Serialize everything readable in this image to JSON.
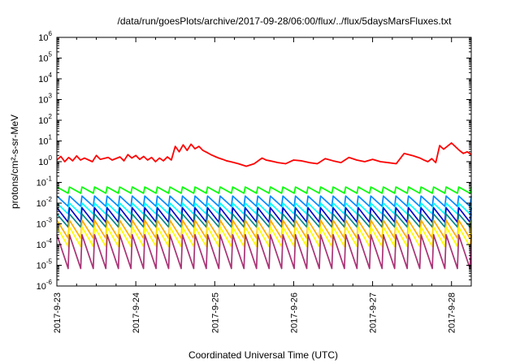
{
  "chart_data": {
    "type": "line",
    "title": "/data/run/goesPlots/archive/2017-09-28/06:00/flux/../flux/5daysMarsFluxes.txt",
    "xlabel": "Coordinated Universal Time (UTC)",
    "ylabel": "protons/cm²-s-sr-MeV",
    "y_scale": "log",
    "ylim": [
      1e-06,
      1000000.0
    ],
    "xlim": [
      "2017-09-23 00:00",
      "2017-09-28 06:00"
    ],
    "x_ticks": [
      "2017-9-23",
      "2017-9-24",
      "2017-9-25",
      "2017-9-26",
      "2017-9-27",
      "2017-9-28"
    ],
    "y_ticks": [
      {
        "base": "10",
        "exp": "-6"
      },
      {
        "base": "10",
        "exp": "-5"
      },
      {
        "base": "10",
        "exp": "-4"
      },
      {
        "base": "10",
        "exp": "-3"
      },
      {
        "base": "10",
        "exp": "-2"
      },
      {
        "base": "10",
        "exp": "-1"
      },
      {
        "base": "10",
        "exp": "0"
      },
      {
        "base": "10",
        "exp": "1"
      },
      {
        "base": "10",
        "exp": "2"
      },
      {
        "base": "10",
        "exp": "3"
      },
      {
        "base": "10",
        "exp": "4"
      },
      {
        "base": "10",
        "exp": "5"
      },
      {
        "base": "10",
        "exp": "6"
      }
    ],
    "grid": false,
    "legend": "none",
    "series": [
      {
        "color": "#ff0000",
        "sawtooth": false,
        "x": [
          0.0,
          0.05,
          0.1,
          0.15,
          0.2,
          0.25,
          0.3,
          0.35,
          0.45,
          0.5,
          0.55,
          0.65,
          0.7,
          0.8,
          0.85,
          0.9,
          0.95,
          1.0,
          1.05,
          1.1,
          1.15,
          1.2,
          1.25,
          1.3,
          1.35,
          1.4,
          1.45,
          1.5,
          1.55,
          1.6,
          1.65,
          1.7,
          1.75,
          1.8,
          1.85,
          1.9,
          1.95,
          2.0,
          2.05,
          2.1,
          2.15,
          2.2,
          2.3,
          2.4,
          2.5,
          2.6,
          2.65,
          2.7,
          2.75,
          2.8,
          2.9,
          3.0,
          3.1,
          3.2,
          3.3,
          3.4,
          3.5,
          3.6,
          3.7,
          3.8,
          3.9,
          4.0,
          4.1,
          4.2,
          4.3,
          4.4,
          4.5,
          4.6,
          4.65,
          4.7,
          4.75,
          4.8,
          4.85,
          4.9,
          5.0,
          5.1,
          5.15,
          5.2,
          5.25
        ],
        "y": [
          1.2,
          1.8,
          1.0,
          1.6,
          1.1,
          1.9,
          1.2,
          1.5,
          1.0,
          2.0,
          1.3,
          1.6,
          1.2,
          1.7,
          1.1,
          2.2,
          1.5,
          2.0,
          1.3,
          1.8,
          1.2,
          1.6,
          1.0,
          1.5,
          1.1,
          1.7,
          1.2,
          5.5,
          3.0,
          6.5,
          3.5,
          7.0,
          4.2,
          5.5,
          3.5,
          2.8,
          2.2,
          1.8,
          1.5,
          1.3,
          1.1,
          1.0,
          0.8,
          0.6,
          0.8,
          1.5,
          1.2,
          1.1,
          1.0,
          0.9,
          0.8,
          1.2,
          1.1,
          0.9,
          0.8,
          1.4,
          1.1,
          0.9,
          1.6,
          1.2,
          1.0,
          1.3,
          1.0,
          0.9,
          0.8,
          2.5,
          2.0,
          1.5,
          1.2,
          1.0,
          1.4,
          0.9,
          6.0,
          4.0,
          8.0,
          3.5,
          2.5,
          3.0,
          2.2
        ]
      },
      {
        "color": "#00ff00",
        "sawtooth": true,
        "y_high": 0.06,
        "y_low": 0.03,
        "teeth": 33
      },
      {
        "color": "#0088ff",
        "sawtooth": true,
        "y_high": 0.022,
        "y_low": 0.007,
        "teeth": 33
      },
      {
        "color": "#00ffff",
        "sawtooth": true,
        "y_high": 0.01,
        "y_low": 0.003,
        "teeth": 33
      },
      {
        "color": "#0000cc",
        "sawtooth": true,
        "y_high": 0.006,
        "y_low": 0.0012,
        "teeth": 33
      },
      {
        "color": "#008888",
        "sawtooth": true,
        "y_high": 0.003,
        "y_low": 0.0007,
        "teeth": 33
      },
      {
        "color": "#ffaa00",
        "sawtooth": true,
        "y_high": 0.0015,
        "y_low": 0.0002,
        "teeth": 33
      },
      {
        "color": "#ffff00",
        "sawtooth": true,
        "y_high": 0.0007,
        "y_low": 8e-05,
        "teeth": 33
      },
      {
        "color": "#aa3377",
        "sawtooth": true,
        "y_high": 0.0003,
        "y_low": 7e-06,
        "teeth": 33
      }
    ]
  }
}
